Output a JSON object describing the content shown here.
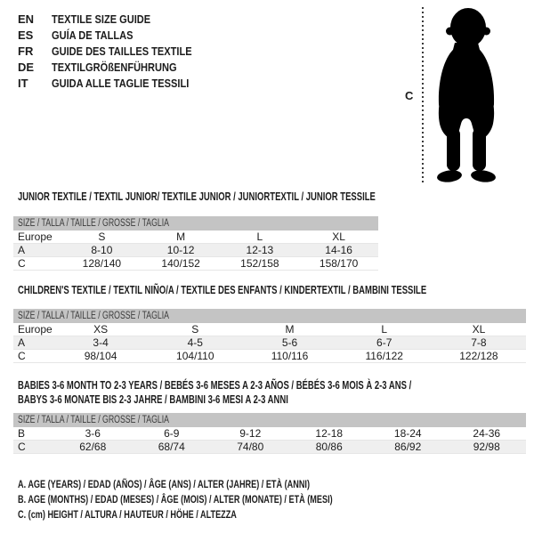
{
  "header": {
    "languages": [
      {
        "code": "EN",
        "title": "TEXTILE SIZE GUIDE"
      },
      {
        "code": "ES",
        "title": "GUÍA DE TALLAS"
      },
      {
        "code": "FR",
        "title": "GUIDE DES TAILLES TEXTILE"
      },
      {
        "code": "DE",
        "title": "TEXTILGRÖßENFÜHRUNG"
      },
      {
        "code": "IT",
        "title": "GUIDA ALLE TAGLIE TESSILI"
      }
    ]
  },
  "figure": {
    "label": "C"
  },
  "tables": [
    {
      "title_lines": [
        "JUNIOR TEXTILE / TEXTIL JUNIOR/ TEXTILE JUNIOR / JUNIORTEXTIL / JUNIOR TESSILE"
      ],
      "size_header": "SIZE / TALLA / TAILLE / GRÖSSE / TAGLIA",
      "label_col": "Europe",
      "columns": [
        "S",
        "M",
        "L",
        "XL"
      ],
      "rows": [
        {
          "label": "A",
          "values": [
            "8-10",
            "10-12",
            "12-13",
            "14-16"
          ]
        },
        {
          "label": "C",
          "values": [
            "128/140",
            "140/152",
            "152/158",
            "158/170"
          ]
        }
      ]
    },
    {
      "title_lines": [
        "CHILDREN'S TEXTILE / TEXTIL NIÑO/A / TEXTILE DES ENFANTS / KINDERTEXTIL / BAMBINI TESSILE"
      ],
      "size_header": "SIZE / TALLA / TAILLE / GRÖSSE / TAGLIA",
      "label_col": "Europe",
      "columns": [
        "XS",
        "S",
        "M",
        "L",
        "XL"
      ],
      "rows": [
        {
          "label": "A",
          "values": [
            "3-4",
            "4-5",
            "5-6",
            "6-7",
            "7-8"
          ]
        },
        {
          "label": "C",
          "values": [
            "98/104",
            "104/110",
            "110/116",
            "116/122",
            "122/128"
          ]
        }
      ]
    },
    {
      "title_lines": [
        "BABIES 3-6 MONTH TO 2-3 YEARS / BEBÉS 3-6 MESES A 2-3 AÑOS / BÉBÉS 3-6 MOIS À 2-3 ANS /",
        "BABYS 3-6 MONATE BIS 2-3 JAHRE / BAMBINI 3-6 MESI A 2-3 ANNI"
      ],
      "size_header": "SIZE / TALLA / TAILLE / GRÖSSE / TAGLIA",
      "label_col": null,
      "columns": null,
      "rows": [
        {
          "label": "B",
          "values": [
            "3-6",
            "6-9",
            "9-12",
            "12-18",
            "18-24",
            "24-36"
          ]
        },
        {
          "label": "C",
          "values": [
            "62/68",
            "68/74",
            "74/80",
            "80/86",
            "86/92",
            "92/98"
          ]
        }
      ]
    }
  ],
  "footnotes": [
    "A. AGE (YEARS) / EDAD (AÑOS) / ÂGE (ANS) / ALTER (JAHRE) / ETÀ (ANNI)",
    "B. AGE (MONTHS) / EDAD (MESES) / ÂGE (MOIS) / ALTER (MONATE) / ETÀ (MESI)",
    "C. (cm) HEIGHT / ALTURA / HAUTEUR / HÖHE / ALTEZZA"
  ],
  "colors": {
    "header_bar": "#c4c4c4",
    "alt_row": "#efefef",
    "text": "#1c1c1c",
    "silhouette": "#000000"
  }
}
